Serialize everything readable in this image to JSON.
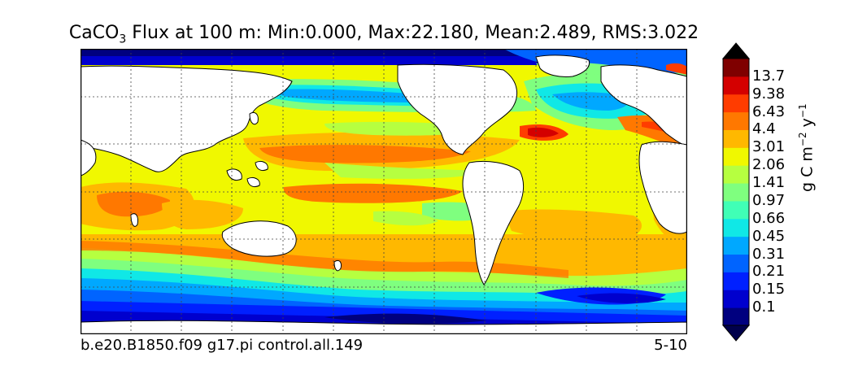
{
  "title": {
    "prefix": "CaCO",
    "subscript": "3",
    "rest": "Flux at 100 m: Min:0.000, Max:22.180, Mean:2.489, RMS:3.022"
  },
  "stats": {
    "min": 0.0,
    "max": 22.18,
    "mean": 2.489,
    "rms": 3.022
  },
  "footer": {
    "left": "b.e20.B1850.f09 g17.pi control.all.149",
    "right": "5-10"
  },
  "colorbar": {
    "units": {
      "base": "g C m",
      "exp1": "−2",
      "mid": " y",
      "exp2": "−1"
    },
    "levels": [
      {
        "label": "0.1",
        "color": "#00007f"
      },
      {
        "label": "0.15",
        "color": "#0000ce"
      },
      {
        "label": "0.21",
        "color": "#0020ff"
      },
      {
        "label": "0.31",
        "color": "#0064ff"
      },
      {
        "label": "0.45",
        "color": "#00a8ff"
      },
      {
        "label": "0.66",
        "color": "#10e8e6"
      },
      {
        "label": "0.97",
        "color": "#40ffb6"
      },
      {
        "label": "1.41",
        "color": "#7fff7f"
      },
      {
        "label": "2.06",
        "color": "#b6ff40"
      },
      {
        "label": "3.01",
        "color": "#f0f800"
      },
      {
        "label": "4.4",
        "color": "#ffb800"
      },
      {
        "label": "6.43",
        "color": "#ff7800"
      },
      {
        "label": "9.38",
        "color": "#ff3c00"
      },
      {
        "label": "13.7",
        "color": "#d40000"
      }
    ],
    "under_color": "#00004c",
    "over_color": "#7f0000",
    "top_extra_color": "#7f0000"
  },
  "map": {
    "type": "filled-contour",
    "projection": "equirectangular",
    "grid": "dashed",
    "land_color": "#ffffff"
  }
}
